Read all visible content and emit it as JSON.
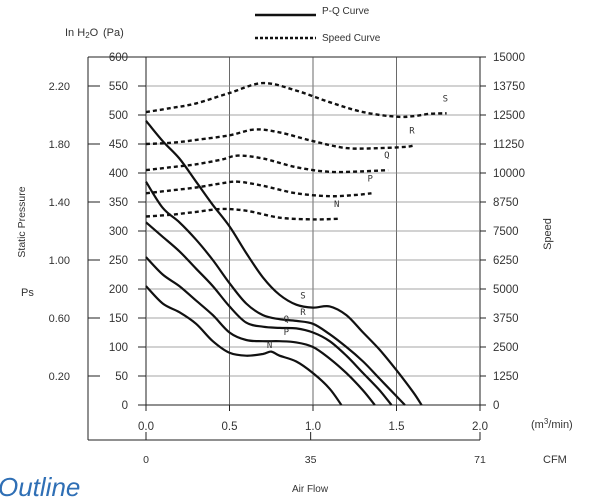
{
  "legend": {
    "pq_label": "P-Q Curve",
    "speed_label": "Speed Curve"
  },
  "labels": {
    "left_units_inh2o": "In H",
    "left_units_inh2o_sub": "2",
    "left_units_inh2o_end": "O",
    "left_units_pa": "(Pa)",
    "y_title": "Static Pressure",
    "ps": "Ps",
    "right_title": "Speed",
    "x_units_m3": "(m",
    "x_units_sup": "3",
    "x_units_end": "/min)",
    "x_units_cfm": "CFM",
    "x_title": "Air Flow",
    "outline": "Outline"
  },
  "chart_data": {
    "type": "line",
    "title": "",
    "xlabel": "Air Flow",
    "ylabel": "Static Pressure",
    "xlim": [
      0,
      2.0
    ],
    "ylim": [
      0,
      600
    ],
    "grid": true,
    "x_ticks": [
      "0.0",
      "0.5",
      "1.0",
      "1.5",
      "2.0"
    ],
    "x_tick_values": [
      0,
      0.5,
      1.0,
      1.5,
      2.0
    ],
    "y_ticks_pa": [
      "0",
      "50",
      "100",
      "150",
      "200",
      "250",
      "300",
      "350",
      "400",
      "450",
      "500",
      "550",
      "600"
    ],
    "y_ticks_inh2o": [
      "0.20",
      "0.60",
      "1.00",
      "1.40",
      "1.80",
      "2.20"
    ],
    "y_ticks_inh2o_pa": [
      50,
      150,
      250,
      350,
      450,
      550
    ],
    "right_ticks_speed": [
      "0",
      "1250",
      "2500",
      "3750",
      "5000",
      "6250",
      "7500",
      "8750",
      "10000",
      "11250",
      "12500",
      "13750",
      "15000"
    ],
    "cfm_ticks": [
      "0",
      "35",
      "71"
    ],
    "cfm_tick_values": [
      0,
      35,
      71
    ],
    "speed_range": [
      0,
      15000
    ],
    "pq_series": [
      {
        "name": "S",
        "points": [
          [
            0,
            490
          ],
          [
            0.1,
            455
          ],
          [
            0.2,
            425
          ],
          [
            0.3,
            385
          ],
          [
            0.4,
            345
          ],
          [
            0.5,
            308
          ],
          [
            0.6,
            262
          ],
          [
            0.7,
            220
          ],
          [
            0.8,
            190
          ],
          [
            0.9,
            173
          ],
          [
            1.0,
            168
          ],
          [
            1.1,
            170
          ],
          [
            1.2,
            155
          ],
          [
            1.3,
            125
          ],
          [
            1.4,
            95
          ],
          [
            1.5,
            60
          ],
          [
            1.6,
            22
          ],
          [
            1.65,
            0
          ]
        ]
      },
      {
        "name": "R",
        "points": [
          [
            0,
            385
          ],
          [
            0.1,
            340
          ],
          [
            0.2,
            315
          ],
          [
            0.3,
            285
          ],
          [
            0.4,
            250
          ],
          [
            0.5,
            210
          ],
          [
            0.6,
            175
          ],
          [
            0.7,
            155
          ],
          [
            0.8,
            148
          ],
          [
            0.9,
            145
          ],
          [
            1.0,
            140
          ],
          [
            1.1,
            122
          ],
          [
            1.2,
            100
          ],
          [
            1.3,
            75
          ],
          [
            1.4,
            45
          ],
          [
            1.5,
            15
          ],
          [
            1.55,
            0
          ]
        ]
      },
      {
        "name": "Q",
        "points": [
          [
            0,
            315
          ],
          [
            0.1,
            290
          ],
          [
            0.2,
            265
          ],
          [
            0.3,
            235
          ],
          [
            0.4,
            205
          ],
          [
            0.5,
            170
          ],
          [
            0.6,
            142
          ],
          [
            0.7,
            135
          ],
          [
            0.8,
            133
          ],
          [
            0.9,
            132
          ],
          [
            1.0,
            125
          ],
          [
            1.1,
            110
          ],
          [
            1.2,
            85
          ],
          [
            1.3,
            55
          ],
          [
            1.4,
            25
          ],
          [
            1.47,
            0
          ]
        ]
      },
      {
        "name": "P",
        "points": [
          [
            0,
            255
          ],
          [
            0.1,
            225
          ],
          [
            0.2,
            205
          ],
          [
            0.3,
            180
          ],
          [
            0.4,
            155
          ],
          [
            0.5,
            125
          ],
          [
            0.6,
            112
          ],
          [
            0.7,
            110
          ],
          [
            0.8,
            110
          ],
          [
            0.9,
            108
          ],
          [
            1.0,
            100
          ],
          [
            1.1,
            80
          ],
          [
            1.2,
            55
          ],
          [
            1.3,
            25
          ],
          [
            1.37,
            0
          ]
        ]
      },
      {
        "name": "N",
        "points": [
          [
            0,
            205
          ],
          [
            0.1,
            175
          ],
          [
            0.2,
            160
          ],
          [
            0.3,
            140
          ],
          [
            0.4,
            110
          ],
          [
            0.5,
            90
          ],
          [
            0.6,
            85
          ],
          [
            0.7,
            88
          ],
          [
            0.75,
            92
          ],
          [
            0.8,
            85
          ],
          [
            0.9,
            75
          ],
          [
            1.0,
            55
          ],
          [
            1.1,
            28
          ],
          [
            1.17,
            0
          ]
        ]
      }
    ],
    "speed_series": [
      {
        "name": "S",
        "points": [
          [
            0,
            505
          ],
          [
            0.15,
            512
          ],
          [
            0.3,
            520
          ],
          [
            0.5,
            538
          ],
          [
            0.7,
            555
          ],
          [
            0.9,
            542
          ],
          [
            1.1,
            522
          ],
          [
            1.3,
            505
          ],
          [
            1.5,
            497
          ],
          [
            1.6,
            498
          ],
          [
            1.7,
            502
          ],
          [
            1.8,
            503
          ]
        ]
      },
      {
        "name": "R",
        "points": [
          [
            0,
            450
          ],
          [
            0.15,
            452
          ],
          [
            0.3,
            457
          ],
          [
            0.5,
            465
          ],
          [
            0.65,
            475
          ],
          [
            0.8,
            470
          ],
          [
            1.0,
            455
          ],
          [
            1.2,
            443
          ],
          [
            1.4,
            443
          ],
          [
            1.55,
            445
          ],
          [
            1.6,
            447
          ]
        ]
      },
      {
        "name": "Q",
        "points": [
          [
            0,
            405
          ],
          [
            0.15,
            410
          ],
          [
            0.3,
            415
          ],
          [
            0.45,
            423
          ],
          [
            0.55,
            430
          ],
          [
            0.7,
            425
          ],
          [
            0.9,
            410
          ],
          [
            1.1,
            402
          ],
          [
            1.3,
            403
          ],
          [
            1.45,
            405
          ]
        ]
      },
      {
        "name": "P",
        "points": [
          [
            0,
            365
          ],
          [
            0.15,
            370
          ],
          [
            0.3,
            375
          ],
          [
            0.45,
            382
          ],
          [
            0.55,
            385
          ],
          [
            0.7,
            378
          ],
          [
            0.9,
            365
          ],
          [
            1.1,
            360
          ],
          [
            1.25,
            362
          ],
          [
            1.35,
            365
          ]
        ]
      },
      {
        "name": "N",
        "points": [
          [
            0,
            325
          ],
          [
            0.15,
            328
          ],
          [
            0.3,
            333
          ],
          [
            0.45,
            338
          ],
          [
            0.6,
            335
          ],
          [
            0.8,
            323
          ],
          [
            1.0,
            320
          ],
          [
            1.15,
            321
          ]
        ]
      }
    ]
  }
}
